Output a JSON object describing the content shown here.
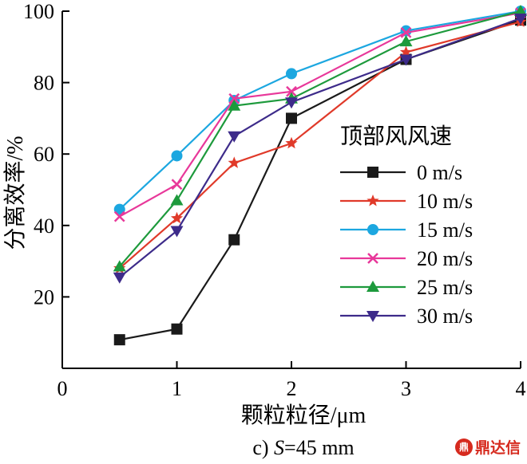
{
  "chart_data": {
    "type": "line",
    "xlabel_text": "颗粒粒径/",
    "xlabel_unit": "μm",
    "ylabel": "分离效率/%",
    "caption_prefix": "c) ",
    "caption_var": "S",
    "caption_suffix": "=45 mm",
    "legend_title": "顶部风风速",
    "legend_position": "right",
    "xlim": [
      0,
      4
    ],
    "ylim": [
      0,
      100
    ],
    "xticks": [
      0,
      1,
      2,
      3,
      4
    ],
    "yticks": [
      20,
      40,
      60,
      80,
      100
    ],
    "grid": false,
    "x": [
      0.5,
      1.0,
      1.5,
      2.0,
      3.0,
      4.0
    ],
    "series": [
      {
        "name": "0 m/s",
        "color": "#1a1a1a",
        "marker": "square",
        "values": [
          8,
          11,
          36,
          70,
          86.5,
          97.5
        ]
      },
      {
        "name": "10 m/s",
        "color": "#e03a2a",
        "marker": "star",
        "values": [
          28,
          42,
          57.5,
          63,
          88.5,
          97
        ]
      },
      {
        "name": "15 m/s",
        "color": "#1ca7e0",
        "marker": "circle",
        "values": [
          44.5,
          59.5,
          75,
          82.5,
          94.5,
          100
        ]
      },
      {
        "name": "20 m/s",
        "color": "#e8389a",
        "marker": "x",
        "values": [
          42.5,
          51.5,
          75.5,
          77.5,
          94,
          99.5
        ]
      },
      {
        "name": "25 m/s",
        "color": "#1d9a3c",
        "marker": "triangle-up",
        "values": [
          28.5,
          47,
          73.5,
          75.5,
          91.5,
          100
        ]
      },
      {
        "name": "30 m/s",
        "color": "#3d2b8a",
        "marker": "triangle-down",
        "values": [
          25.5,
          38.5,
          65,
          74.5,
          86.5,
          98
        ]
      }
    ]
  },
  "watermark": {
    "logo": "鼎",
    "text": "鼎达信"
  }
}
